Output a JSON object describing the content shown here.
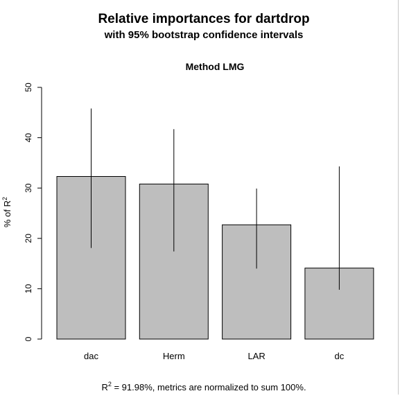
{
  "chart_data": {
    "type": "bar",
    "title": "Relative importances for dartdrop",
    "subtitle": "with 95% bootstrap confidence intervals",
    "panel_title": "Method LMG",
    "ylabel": "% of R",
    "ylabel_sup": "2",
    "xlabel": "",
    "categories": [
      "dac",
      "Herm",
      "LAR",
      "dc"
    ],
    "values": [
      32.3,
      30.8,
      22.7,
      14.1
    ],
    "ci_lower": [
      18.1,
      17.4,
      14.0,
      9.8
    ],
    "ci_upper": [
      45.8,
      41.7,
      29.9,
      34.3
    ],
    "ylim": [
      0,
      50
    ],
    "yticks": [
      0,
      10,
      20,
      30,
      40,
      50
    ],
    "grid": false,
    "bar_color": "#bebebe",
    "bar_stroke": "#000000",
    "footnote_prefix": "R",
    "footnote_sup": "2",
    "footnote_text": " = 91.98%, metrics are normalized to sum 100%."
  }
}
